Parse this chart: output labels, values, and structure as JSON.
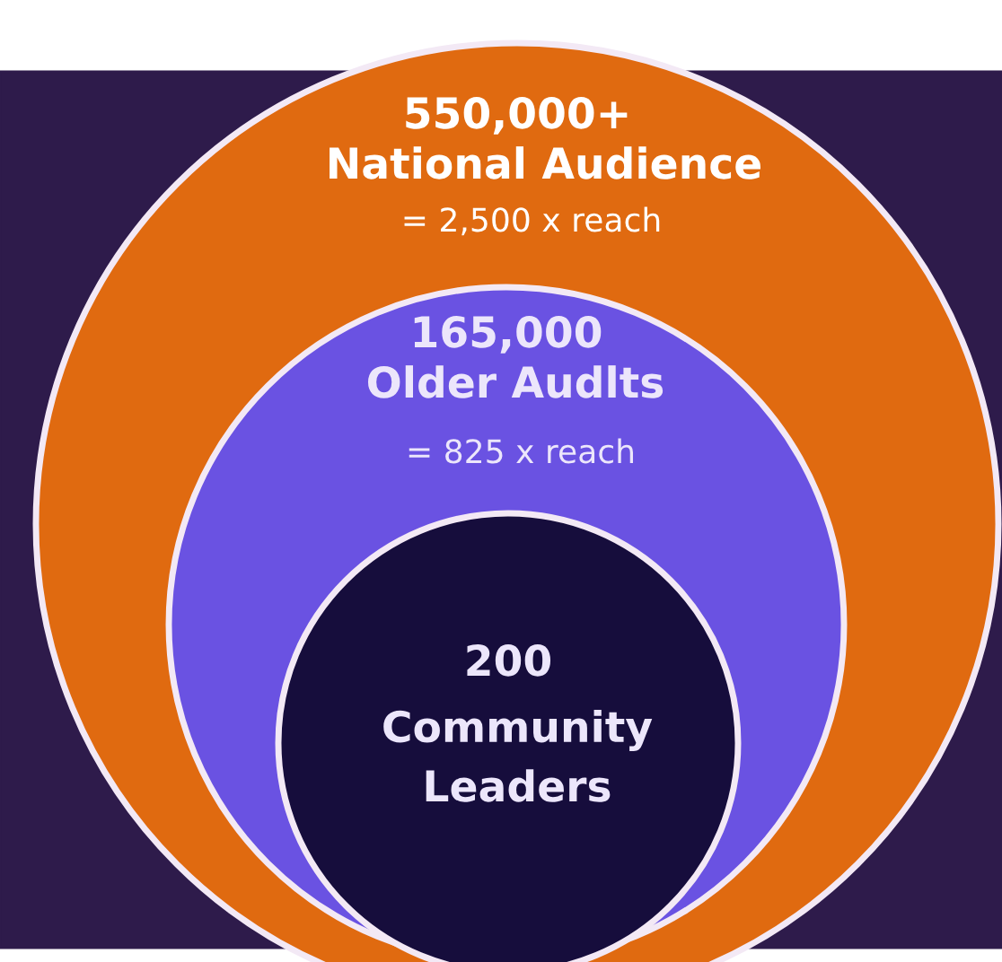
{
  "chart_data": {
    "type": "other",
    "categories": [
      "National Audience",
      "Older Audlts",
      "Community\nLeaders"
    ],
    "values": [
      550000,
      165000,
      200
    ],
    "value_labels": [
      "550,000+",
      "165,000",
      "200"
    ],
    "annotations": [
      "= 2,500 x reach",
      "= 825 x reach"
    ],
    "colors": [
      "#e06a10",
      "#6a52e2",
      "#160d3c"
    ]
  }
}
